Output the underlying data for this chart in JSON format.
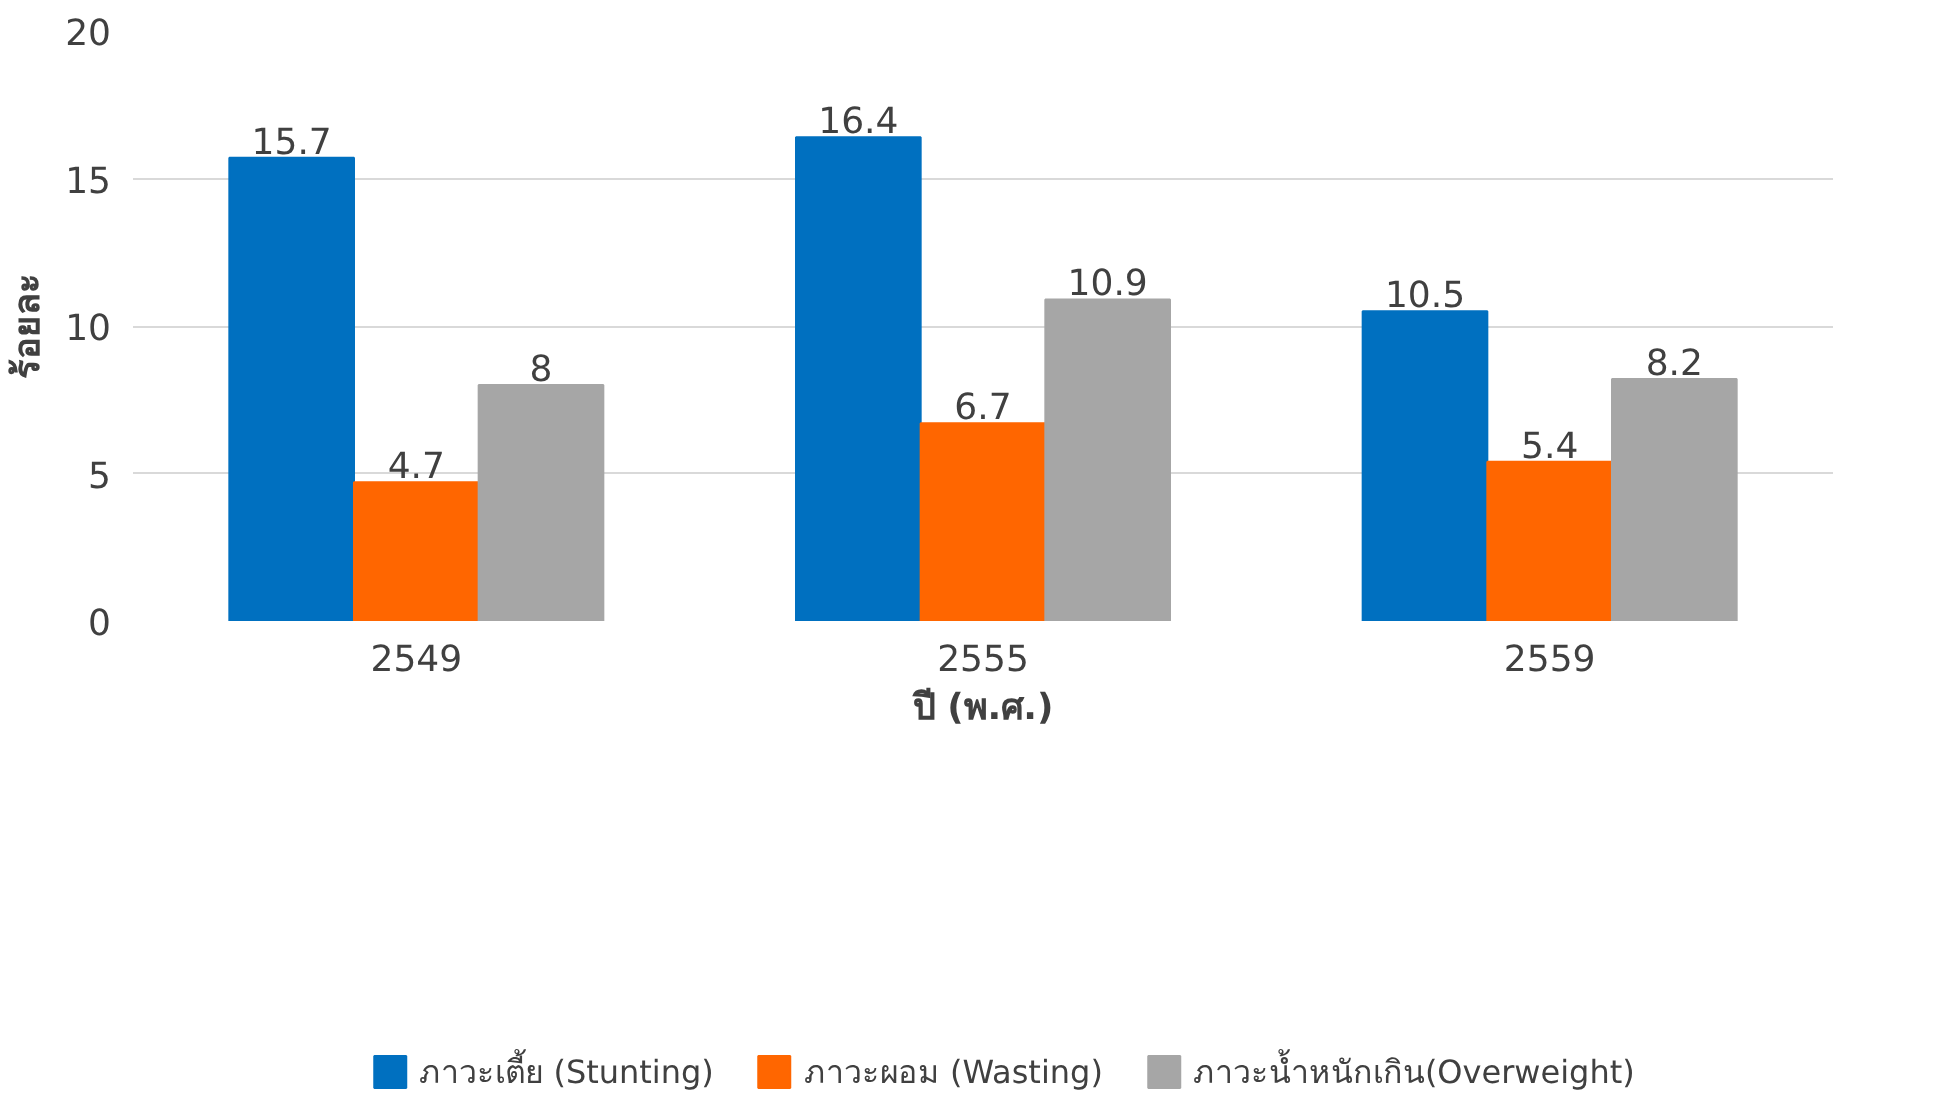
{
  "chart_data": {
    "type": "bar",
    "xlabel": "ปี (พ.ศ.)",
    "ylabel": "ร้อยละ",
    "categories": [
      "2549",
      "2555",
      "2559"
    ],
    "series": [
      {
        "name": "ภาวะเตี้ย (Stunting)",
        "color": "#0070c0",
        "values": [
          15.7,
          16.4,
          10.5
        ]
      },
      {
        "name": "ภาวะผอม (Wasting)",
        "color": "#ff6600",
        "values": [
          4.7,
          6.7,
          5.4
        ]
      },
      {
        "name": "ภาวะน้ำหนักเกิน(Overweight)",
        "color": "#a6a6a6",
        "values": [
          8,
          10.9,
          8.2
        ]
      }
    ],
    "ylim": [
      0,
      20
    ],
    "yticks": [
      0,
      5,
      10,
      15,
      20
    ],
    "grid": "y",
    "legend": "bottom",
    "data_labels": true
  }
}
